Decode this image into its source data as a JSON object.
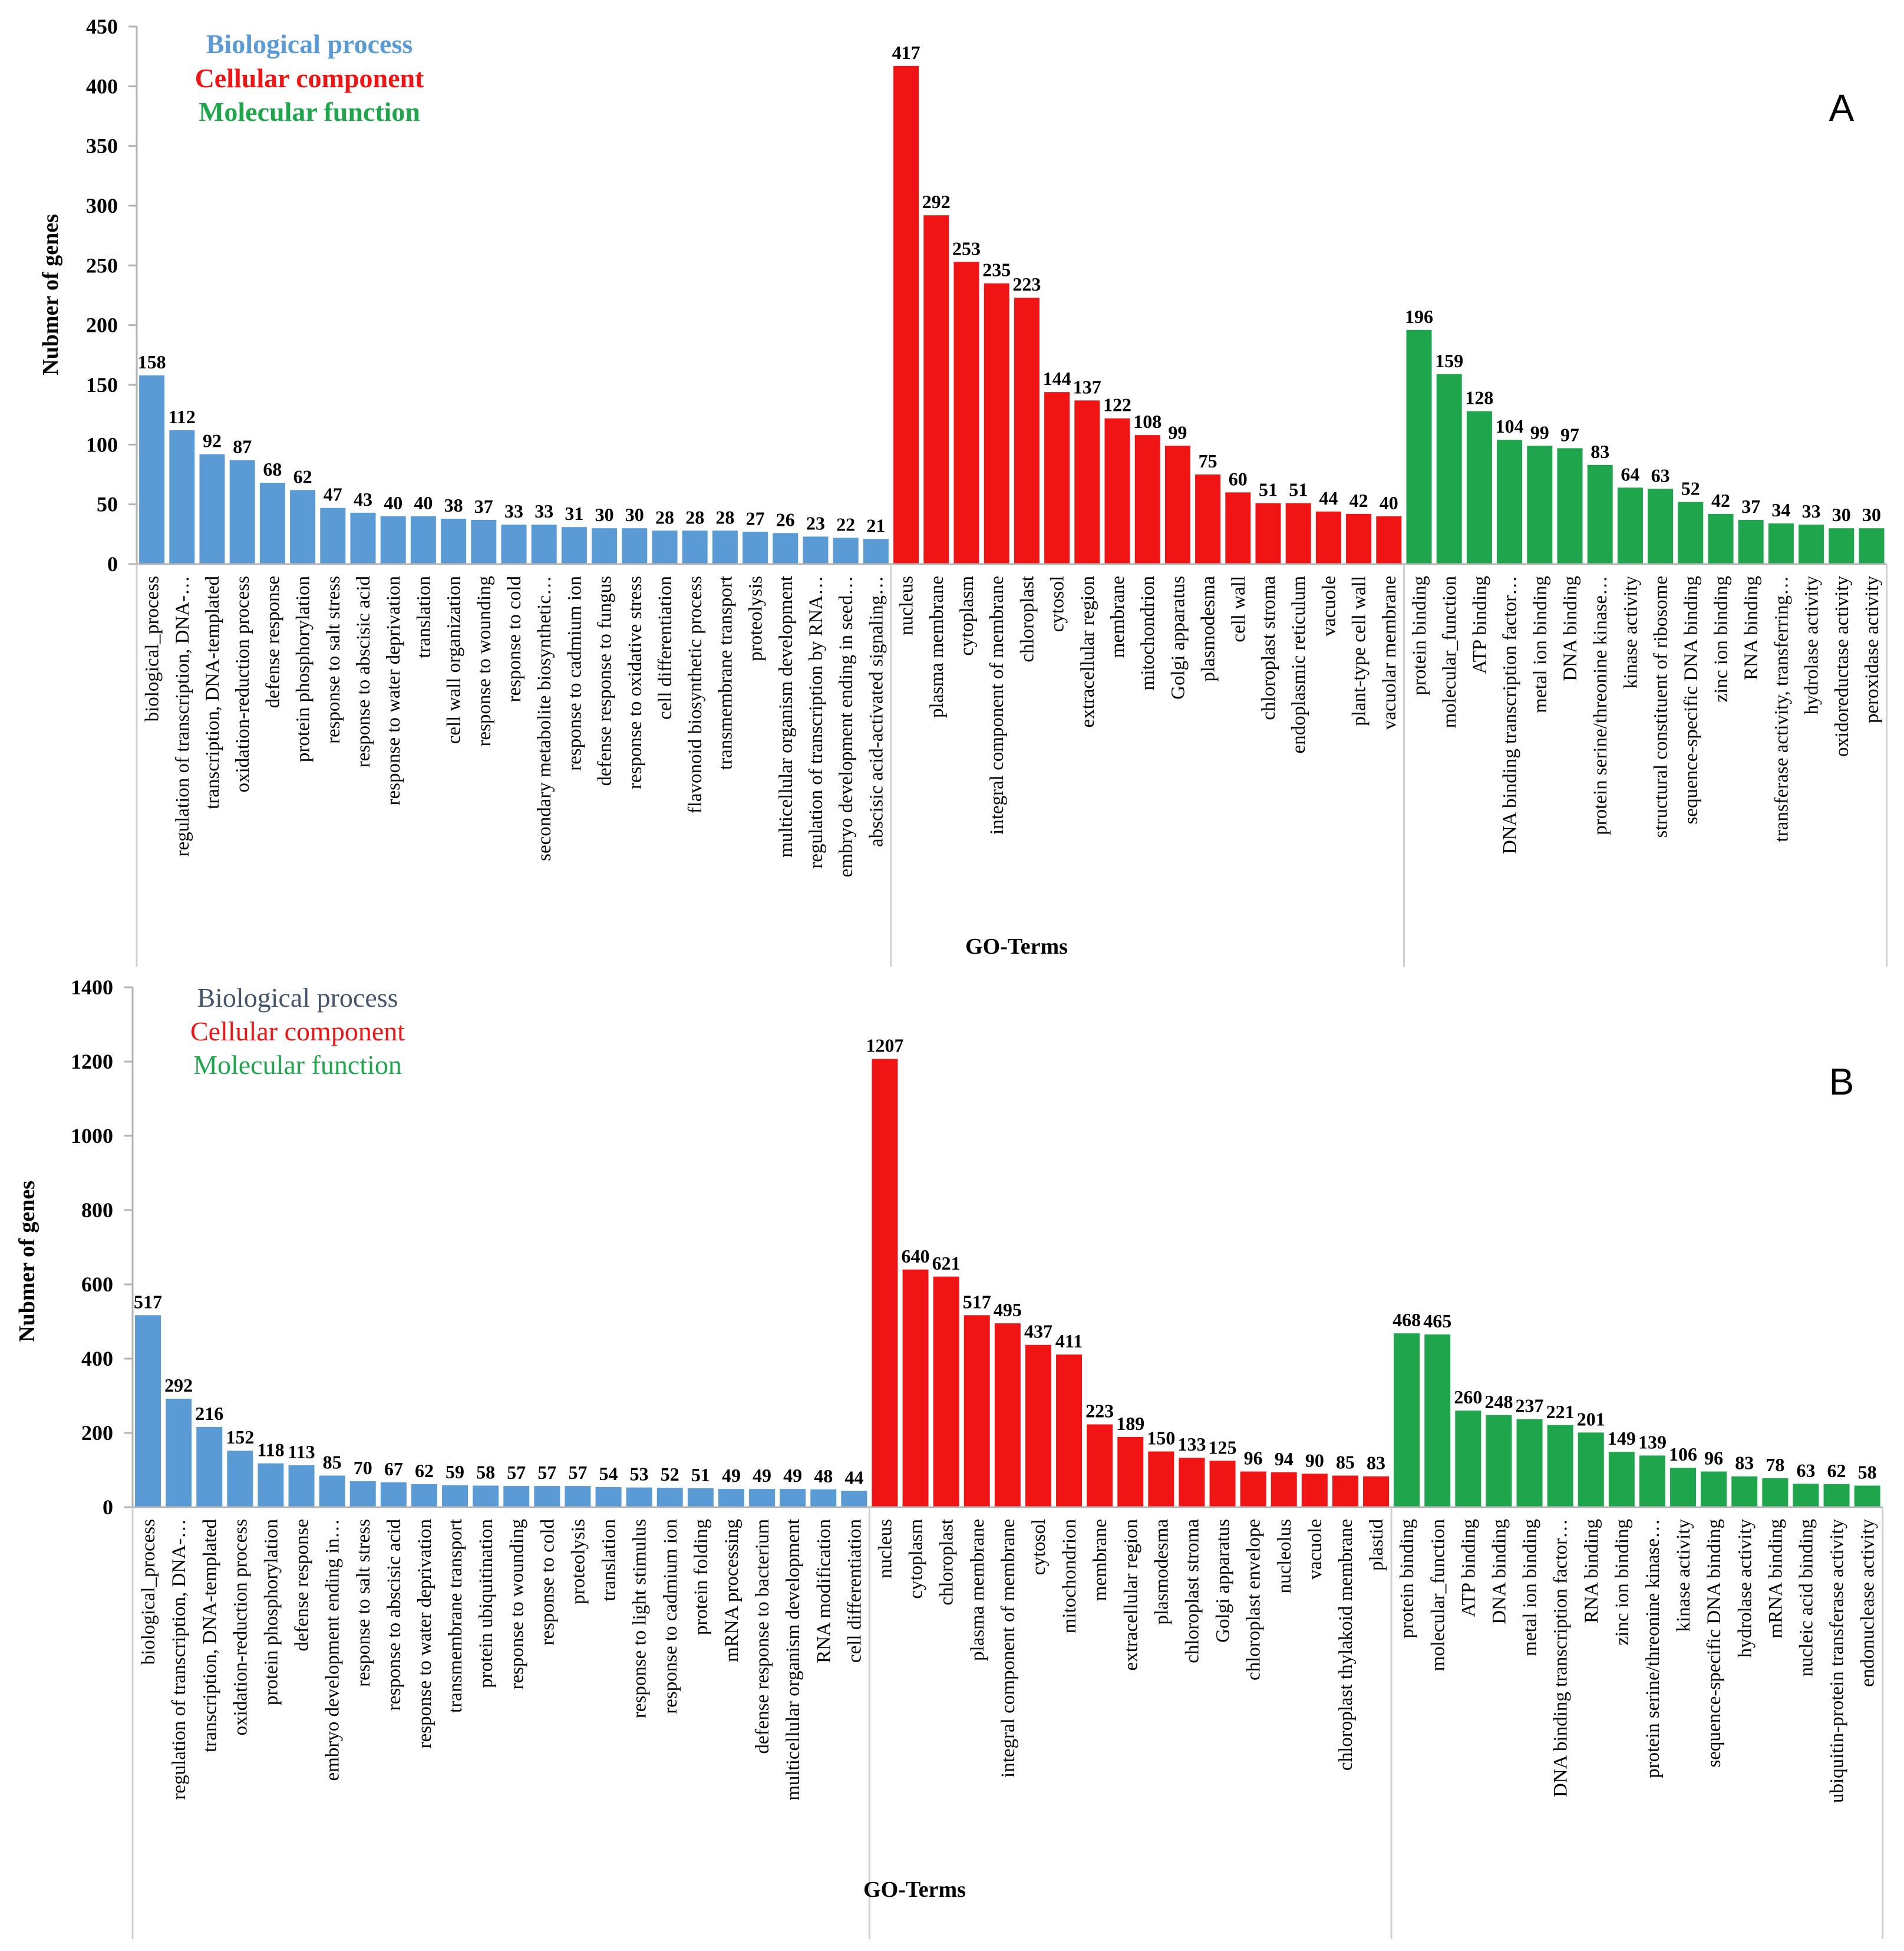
{
  "colors": {
    "biological": "#5b9bd5",
    "cellular": "#f01414",
    "molecular": "#1fa64c",
    "legend_bp_A": "#5b9bd5",
    "legend_bp_B": "#44546a"
  },
  "chart_data": [
    {
      "type": "bar",
      "panel_label": "A",
      "xlabel": "GO-Terms",
      "ylabel": "Nubmer of genes",
      "ylim": [
        0,
        450
      ],
      "yticks": [
        "0",
        "50",
        "100",
        "150",
        "200",
        "250",
        "300",
        "350",
        "400",
        "450"
      ],
      "legend": [
        "Biological process",
        "Cellular component",
        "Molecular function"
      ],
      "series": [
        {
          "name": "Biological process",
          "categories": [
            "biological_process",
            "regulation of transcription, DNA-…",
            "transcription, DNA-templated",
            "oxidation-reduction process",
            "defense response",
            "protein phosphorylation",
            "response to salt stress",
            "response to abscisic acid",
            "response to water deprivation",
            "translation",
            "cell wall organization",
            "response to wounding",
            "response to cold",
            "secondary metabolite biosynthetic…",
            "response to cadmium ion",
            "defense response to fungus",
            "response to oxidative stress",
            "cell differentiation",
            "flavonoid biosynthetic process",
            "transmembrane transport",
            "proteolysis",
            "multicellular organism development",
            "regulation of transcription by RNA…",
            "embryo development ending in seed…",
            "abscisic acid-activated signaling…"
          ],
          "values": [
            158,
            112,
            92,
            87,
            68,
            62,
            47,
            43,
            40,
            40,
            38,
            37,
            33,
            33,
            31,
            30,
            30,
            28,
            28,
            28,
            27,
            26,
            23,
            22,
            21
          ]
        },
        {
          "name": "Cellular component",
          "categories": [
            "nucleus",
            "plasma membrane",
            "cytoplasm",
            "integral component of membrane",
            "chloroplast",
            "cytosol",
            "extracellular region",
            "membrane",
            "mitochondrion",
            "Golgi apparatus",
            "plasmodesma",
            "cell wall",
            "chloroplast stroma",
            "endoplasmic reticulum",
            "vacuole",
            "plant-type cell wall",
            "vacuolar membrane"
          ],
          "values": [
            417,
            292,
            253,
            235,
            223,
            144,
            137,
            122,
            108,
            99,
            75,
            60,
            51,
            51,
            44,
            42,
            40
          ]
        },
        {
          "name": "Molecular function",
          "categories": [
            "protein binding",
            "molecular_function",
            "ATP binding",
            "DNA binding transcription factor…",
            "metal ion binding",
            "DNA binding",
            "protein serine/threonine kinase…",
            "kinase activity",
            "structural constituent of ribosome",
            "sequence-specific DNA binding",
            "zinc ion binding",
            "RNA binding",
            "transferase activity, transferring…",
            "hydrolase activity",
            "oxidoreductase activity",
            "peroxidase activity"
          ],
          "values": [
            196,
            159,
            128,
            104,
            99,
            97,
            83,
            64,
            63,
            52,
            42,
            37,
            34,
            33,
            30,
            30
          ]
        }
      ]
    },
    {
      "type": "bar",
      "panel_label": "B",
      "xlabel": "GO-Terms",
      "ylabel": "Nubmer of genes",
      "ylim": [
        0,
        1400
      ],
      "yticks": [
        "0",
        "200",
        "400",
        "600",
        "800",
        "1000",
        "1200",
        "1400"
      ],
      "legend": [
        "Biological process",
        "Cellular component",
        "Molecular function"
      ],
      "series": [
        {
          "name": "Biological process",
          "categories": [
            "biological_process",
            "regulation of transcription, DNA-…",
            "transcription, DNA-templated",
            "oxidation-reduction process",
            "protein phosphorylation",
            "defense response",
            "embryo development ending in…",
            "response to salt stress",
            "response to abscisic acid",
            "response to water deprivation",
            "transmembrane transport",
            "protein ubiquitination",
            "response to wounding",
            "response to cold",
            "proteolysis",
            "translation",
            "response to light stimulus",
            "response to cadmium ion",
            "protein folding",
            "mRNA processing",
            "defense response to bacterium",
            "multicellular organism development",
            "RNA modification",
            "cell differentiation"
          ],
          "values": [
            517,
            292,
            216,
            152,
            118,
            113,
            85,
            70,
            67,
            62,
            59,
            58,
            57,
            57,
            57,
            54,
            53,
            52,
            51,
            49,
            49,
            49,
            48,
            44
          ]
        },
        {
          "name": "Cellular component",
          "categories": [
            "nucleus",
            "cytoplasm",
            "chloroplast",
            "plasma membrane",
            "integral component of membrane",
            "cytosol",
            "mitochondrion",
            "membrane",
            "extracellular region",
            "plasmodesma",
            "chloroplast stroma",
            "Golgi apparatus",
            "chloroplast envelope",
            "nucleolus",
            "vacuole",
            "chloroplast thylakoid membrane",
            "plastid"
          ],
          "values": [
            1207,
            640,
            621,
            517,
            495,
            437,
            411,
            223,
            189,
            150,
            133,
            125,
            96,
            94,
            90,
            85,
            83
          ]
        },
        {
          "name": "Molecular function",
          "categories": [
            "protein binding",
            "molecular_function",
            "ATP binding",
            "DNA binding",
            "metal ion binding",
            "DNA binding transcription factor…",
            "RNA binding",
            "zinc ion binding",
            "protein serine/threonine kinase…",
            "kinase activity",
            "sequence-specific DNA binding",
            "hydrolase activity",
            "mRNA binding",
            "nucleic acid binding",
            "ubiquitin-protein transferase activity",
            "endonuclease activity"
          ],
          "values": [
            468,
            465,
            260,
            248,
            237,
            221,
            201,
            149,
            139,
            106,
            96,
            83,
            78,
            63,
            62,
            58
          ]
        }
      ]
    }
  ]
}
